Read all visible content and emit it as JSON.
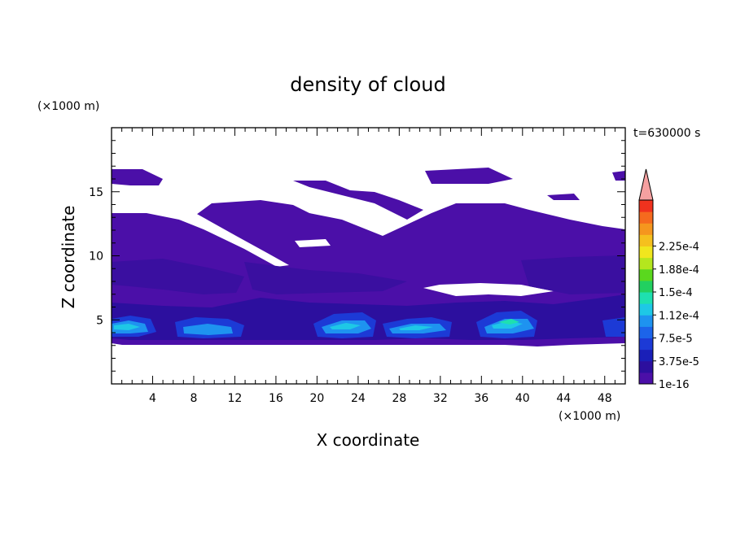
{
  "chart_data": {
    "type": "contour",
    "title": "density of cloud",
    "time_label": "t=630000 s",
    "xlabel": "X coordinate",
    "ylabel": "Z coordinate",
    "x_unit": "(×1000 m)",
    "y_unit": "(×1000 m)",
    "xlim": [
      0,
      50
    ],
    "ylim": [
      0,
      20
    ],
    "x_ticks": [
      "4",
      "8",
      "12",
      "16",
      "20",
      "24",
      "28",
      "32",
      "36",
      "40",
      "44",
      "48"
    ],
    "y_ticks": [
      "5",
      "10",
      "15"
    ],
    "colorbar": {
      "labels": [
        "1e-16",
        "3.75e-5",
        "7.5e-5",
        "1.12e-4",
        "1.5e-4",
        "1.88e-4",
        "2.25e-4"
      ],
      "colors": [
        "#4b0fa8",
        "#2c0f9e",
        "#1a1fb8",
        "#1c3ad6",
        "#1c64ea",
        "#1e93f0",
        "#1ec8e6",
        "#1ee0b0",
        "#22d060",
        "#5ad81e",
        "#b4e61e",
        "#f0e61e",
        "#f5c01e",
        "#f5961e",
        "#f56a1e",
        "#f0321e"
      ],
      "extend_color": "#f5a0a0"
    },
    "layers": [
      {
        "name": "cloud base band",
        "level_index": 0
      },
      {
        "name": "lower cloud cells",
        "level_index": 3
      },
      {
        "name": "cell cores",
        "level_index": 6
      }
    ]
  }
}
